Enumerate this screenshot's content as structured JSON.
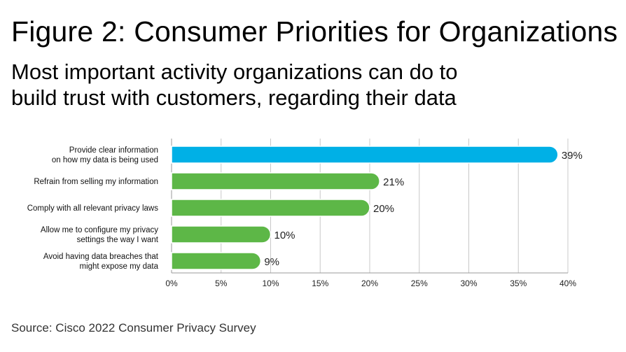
{
  "title": "Figure 2: Consumer Priorities for Organizations",
  "subtitle_lines": [
    "Most important activity organizations can do to",
    "build trust with customers, regarding their data"
  ],
  "source": "Source: Cisco 2022 Consumer Privacy Survey",
  "colors": {
    "highlight": "#00B0E6",
    "default": "#5DB747",
    "grid": "#C8C8C8",
    "axis": "#9A9A9A"
  },
  "chart_data": {
    "type": "bar",
    "orientation": "horizontal",
    "categories": [
      [
        "Provide clear information",
        "on how my data is being used"
      ],
      [
        "Refrain from selling my information"
      ],
      [
        "Comply with all relevant privacy laws"
      ],
      [
        "Allow me to configure my privacy",
        "settings the way I want"
      ],
      [
        "Avoid having data breaches that",
        "might expose my data"
      ]
    ],
    "values": [
      39,
      21,
      20,
      10,
      9
    ],
    "data_labels": [
      "39%",
      "21%",
      "20%",
      "10%",
      "9%"
    ],
    "highlight_index": 0,
    "xlim": [
      0,
      40
    ],
    "xticks": [
      0,
      5,
      10,
      15,
      20,
      25,
      30,
      35,
      40
    ],
    "xtick_labels": [
      "0%",
      "5%",
      "10%",
      "15%",
      "20%",
      "25%",
      "30%",
      "35%",
      "40%"
    ],
    "grid": "vertical",
    "xlabel": "",
    "ylabel": ""
  }
}
